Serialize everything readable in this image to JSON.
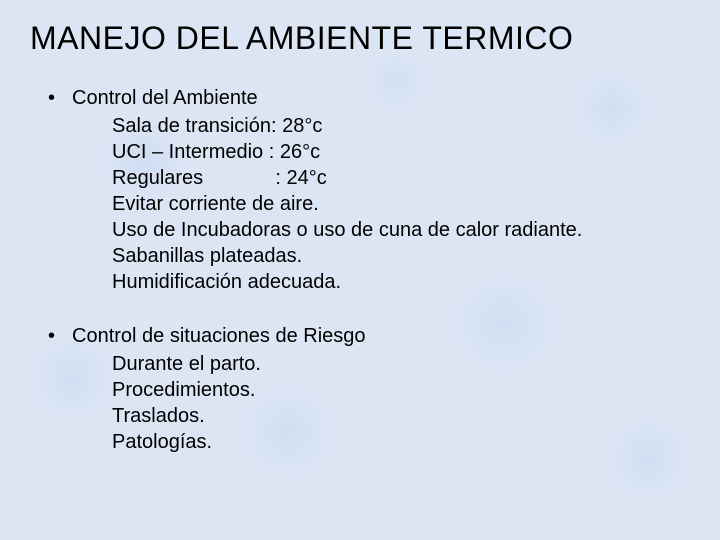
{
  "title": "MANEJO DEL AMBIENTE TERMICO",
  "bullets": [
    {
      "heading": "Control del Ambiente",
      "items": [
        "Sala de transición: 28°c",
        "UCI – Intermedio : 26°c",
        "Regulares             : 24°c",
        "Evitar corriente de aire.",
        "Uso de Incubadoras o uso de cuna de calor radiante.",
        "Sabanillas plateadas.",
        "Humidificación adecuada."
      ]
    },
    {
      "heading": "Control de situaciones de Riesgo",
      "items": [
        "Durante el parto.",
        "Procedimientos.",
        "Traslados.",
        "Patologías."
      ]
    }
  ],
  "colors": {
    "background": "#dbe5f4",
    "text": "#000000"
  },
  "fontsize": {
    "title": 32,
    "body": 20
  }
}
